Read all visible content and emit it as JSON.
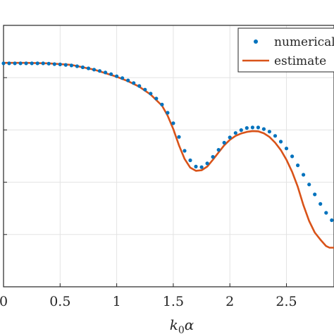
{
  "chart_data": {
    "type": "line",
    "xlabel_main": "k",
    "xlabel_sub": "0",
    "xlabel_tail": "α",
    "xlim": [
      0,
      2.92
    ],
    "ylim": [
      0,
      1
    ],
    "xticks": [
      0,
      0.5,
      1,
      1.5,
      2,
      2.5
    ],
    "xtick_labels": [
      "0",
      "0.5",
      "1",
      "1.5",
      "2",
      "2.5"
    ],
    "grid": true,
    "legend_position": "top-right",
    "colors": {
      "numerical": "#0072BD",
      "estimate": "#D95319",
      "grid": "#e3e3e3",
      "axis": "#262626"
    },
    "series": [
      {
        "name": "numerical",
        "style": "dots",
        "points": [
          [
            0.0,
            0.8547
          ],
          [
            0.05,
            0.8547
          ],
          [
            0.1,
            0.8547
          ],
          [
            0.15,
            0.8547
          ],
          [
            0.2,
            0.8547
          ],
          [
            0.25,
            0.8547
          ],
          [
            0.3,
            0.8547
          ],
          [
            0.35,
            0.8547
          ],
          [
            0.4,
            0.8537
          ],
          [
            0.45,
            0.8517
          ],
          [
            0.5,
            0.8507
          ],
          [
            0.55,
            0.8487
          ],
          [
            0.6,
            0.8467
          ],
          [
            0.65,
            0.8437
          ],
          [
            0.7,
            0.8397
          ],
          [
            0.75,
            0.8357
          ],
          [
            0.8,
            0.8306
          ],
          [
            0.85,
            0.8256
          ],
          [
            0.9,
            0.8196
          ],
          [
            0.95,
            0.8135
          ],
          [
            1.0,
            0.8055
          ],
          [
            1.05,
            0.7985
          ],
          [
            1.1,
            0.7894
          ],
          [
            1.15,
            0.7794
          ],
          [
            1.2,
            0.7683
          ],
          [
            1.25,
            0.7543
          ],
          [
            1.3,
            0.7392
          ],
          [
            1.35,
            0.7201
          ],
          [
            1.4,
            0.697
          ],
          [
            1.45,
            0.6658
          ],
          [
            1.5,
            0.6256
          ],
          [
            1.55,
            0.5734
          ],
          [
            1.6,
            0.5201
          ],
          [
            1.65,
            0.4839
          ],
          [
            1.7,
            0.4598
          ],
          [
            1.75,
            0.4578
          ],
          [
            1.8,
            0.4719
          ],
          [
            1.85,
            0.497
          ],
          [
            1.9,
            0.5241
          ],
          [
            1.95,
            0.5513
          ],
          [
            2.0,
            0.5714
          ],
          [
            2.05,
            0.5884
          ],
          [
            2.1,
            0.5995
          ],
          [
            2.15,
            0.6075
          ],
          [
            2.2,
            0.6095
          ],
          [
            2.25,
            0.6095
          ],
          [
            2.3,
            0.6035
          ],
          [
            2.35,
            0.5935
          ],
          [
            2.4,
            0.5774
          ],
          [
            2.45,
            0.5553
          ],
          [
            2.5,
            0.5291
          ],
          [
            2.55,
            0.499
          ],
          [
            2.6,
            0.4648
          ],
          [
            2.65,
            0.4286
          ],
          [
            2.7,
            0.3915
          ],
          [
            2.75,
            0.3533
          ],
          [
            2.8,
            0.3171
          ],
          [
            2.85,
            0.283
          ],
          [
            2.9,
            0.2548
          ]
        ]
      },
      {
        "name": "estimate",
        "style": "line",
        "points": [
          [
            0.0,
            0.8567
          ],
          [
            0.2,
            0.8567
          ],
          [
            0.4,
            0.8547
          ],
          [
            0.6,
            0.8487
          ],
          [
            0.8,
            0.8306
          ],
          [
            1.0,
            0.8035
          ],
          [
            1.1,
            0.7864
          ],
          [
            1.2,
            0.7653
          ],
          [
            1.3,
            0.7352
          ],
          [
            1.4,
            0.693
          ],
          [
            1.45,
            0.6548
          ],
          [
            1.5,
            0.6035
          ],
          [
            1.55,
            0.5412
          ],
          [
            1.6,
            0.4889
          ],
          [
            1.65,
            0.4558
          ],
          [
            1.7,
            0.4437
          ],
          [
            1.75,
            0.4457
          ],
          [
            1.8,
            0.4598
          ],
          [
            1.85,
            0.4859
          ],
          [
            1.9,
            0.5141
          ],
          [
            1.95,
            0.5412
          ],
          [
            2.0,
            0.5623
          ],
          [
            2.05,
            0.5774
          ],
          [
            2.1,
            0.5864
          ],
          [
            2.15,
            0.5925
          ],
          [
            2.2,
            0.5955
          ],
          [
            2.25,
            0.5945
          ],
          [
            2.3,
            0.5874
          ],
          [
            2.35,
            0.5734
          ],
          [
            2.4,
            0.5513
          ],
          [
            2.45,
            0.5231
          ],
          [
            2.5,
            0.4859
          ],
          [
            2.55,
            0.4397
          ],
          [
            2.6,
            0.3824
          ],
          [
            2.65,
            0.3121
          ],
          [
            2.7,
            0.2518
          ],
          [
            2.75,
            0.2075
          ],
          [
            2.8,
            0.1804
          ],
          [
            2.85,
            0.1558
          ],
          [
            2.88,
            0.1497
          ],
          [
            2.92,
            0.1497
          ]
        ]
      }
    ]
  }
}
